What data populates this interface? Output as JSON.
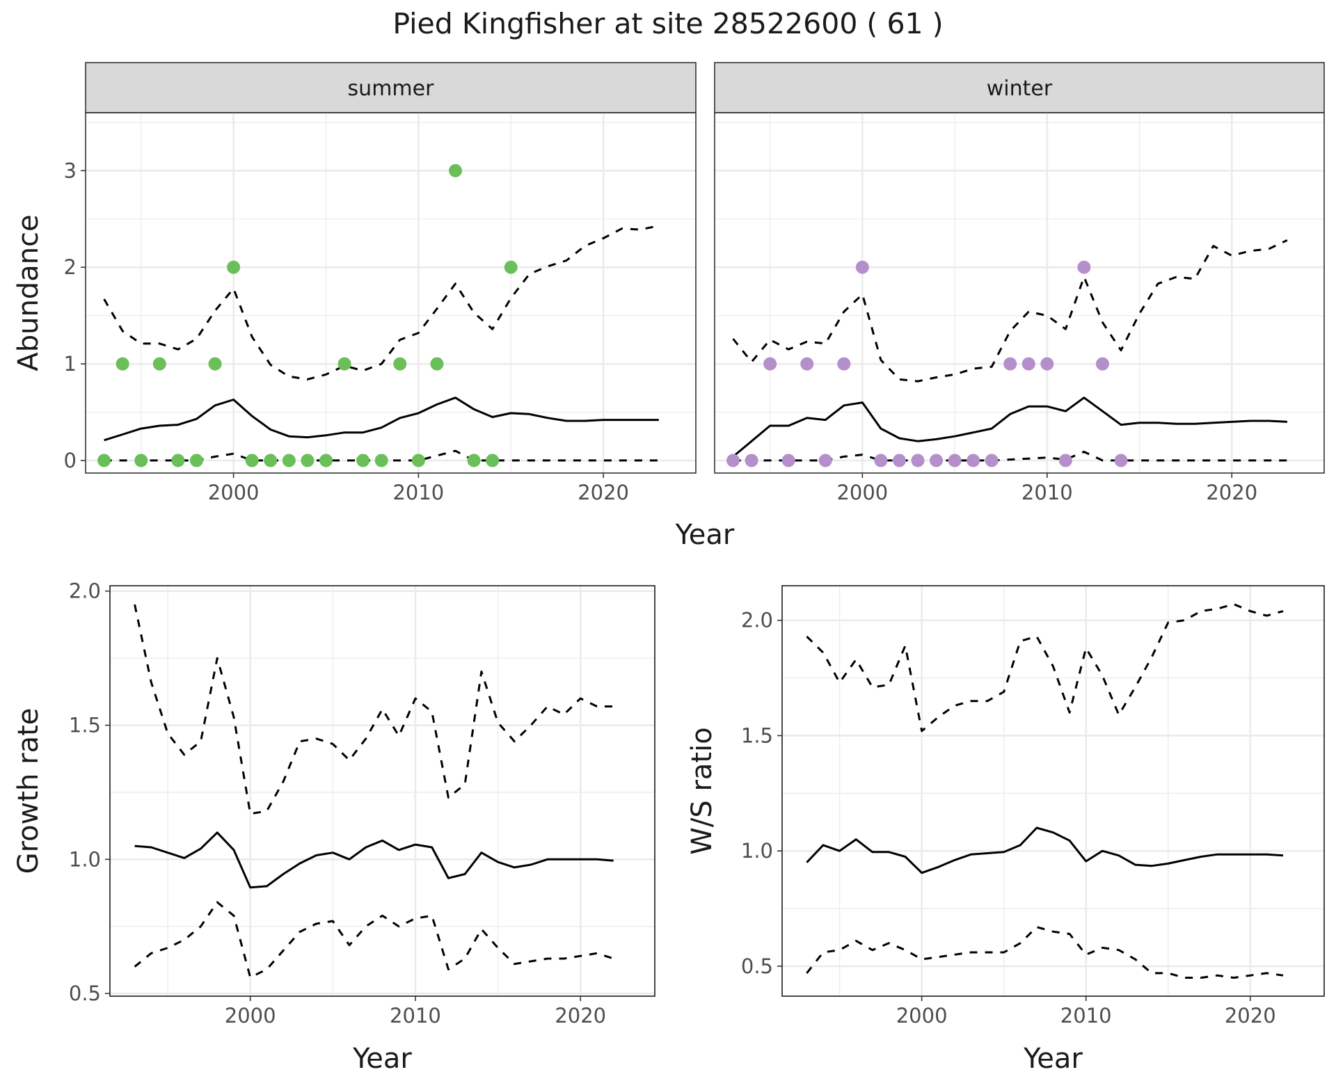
{
  "title": "Pied Kingfisher at site 28522600 ( 61 )",
  "chart_data": [
    {
      "type": "line",
      "facets": [
        "summer",
        "winter"
      ],
      "xlabel": "Year",
      "ylabel": "Abundance",
      "xlim": [
        1992,
        2025
      ],
      "ylim": [
        -0.13,
        3.6
      ],
      "xticks": [
        2000,
        2010,
        2020
      ],
      "yticks": [
        0,
        1,
        2,
        3
      ],
      "grid": true,
      "point_colors": {
        "summer": "#6abf59",
        "winter": "#b58fcb"
      },
      "summer": {
        "observed": {
          "x": [
            1993,
            1994,
            1995,
            1996,
            1997,
            1998,
            1999,
            2000,
            2001,
            2002,
            2003,
            2004,
            2005,
            2006,
            2007,
            2008,
            2009,
            2010,
            2011,
            2012,
            2013,
            2014,
            2015
          ],
          "y": [
            0,
            1,
            0,
            1,
            0,
            0,
            1,
            2,
            0,
            0,
            0,
            0,
            0,
            1,
            0,
            0,
            1,
            0,
            1,
            3,
            0,
            0,
            2
          ]
        },
        "fit": {
          "x": [
            1993,
            1994,
            1995,
            1996,
            1997,
            1998,
            1999,
            2000,
            2001,
            2002,
            2003,
            2004,
            2005,
            2006,
            2007,
            2008,
            2009,
            2010,
            2011,
            2012,
            2013,
            2014,
            2015,
            2016,
            2017,
            2018,
            2019,
            2020,
            2021,
            2022,
            2023
          ],
          "y": [
            0.21,
            0.27,
            0.33,
            0.36,
            0.37,
            0.43,
            0.57,
            0.63,
            0.46,
            0.32,
            0.25,
            0.24,
            0.26,
            0.29,
            0.29,
            0.34,
            0.44,
            0.49,
            0.58,
            0.65,
            0.53,
            0.45,
            0.49,
            0.48,
            0.44,
            0.41,
            0.41,
            0.42,
            0.42,
            0.42,
            0.42
          ]
        },
        "upper": {
          "x": [
            1993,
            1994,
            1995,
            1996,
            1997,
            1998,
            1999,
            2000,
            2001,
            2002,
            2003,
            2004,
            2005,
            2006,
            2007,
            2008,
            2009,
            2010,
            2011,
            2012,
            2013,
            2014,
            2015,
            2016,
            2017,
            2018,
            2019,
            2020,
            2021,
            2022,
            2023
          ],
          "y": [
            1.67,
            1.34,
            1.21,
            1.21,
            1.15,
            1.26,
            1.55,
            1.78,
            1.28,
            0.99,
            0.87,
            0.84,
            0.89,
            0.98,
            0.93,
            1.0,
            1.25,
            1.32,
            1.57,
            1.83,
            1.53,
            1.36,
            1.68,
            1.93,
            2.01,
            2.07,
            2.22,
            2.3,
            2.4,
            2.39,
            2.43
          ]
        },
        "lower": {
          "x": [
            1993,
            1994,
            1995,
            1996,
            1997,
            1998,
            1999,
            2000,
            2001,
            2002,
            2003,
            2004,
            2005,
            2006,
            2007,
            2008,
            2009,
            2010,
            2011,
            2012,
            2013,
            2014,
            2015,
            2016,
            2017,
            2018,
            2019,
            2020,
            2021,
            2022,
            2023
          ],
          "y": [
            0,
            0,
            0,
            0,
            0,
            0,
            0.04,
            0.07,
            0,
            0,
            0,
            0,
            0,
            0,
            0,
            0,
            0,
            0,
            0.05,
            0.1,
            0,
            0,
            0,
            0,
            0,
            0,
            0,
            0,
            0,
            0,
            0
          ]
        }
      },
      "winter": {
        "observed": {
          "x": [
            1993,
            1994,
            1995,
            1996,
            1997,
            1998,
            1999,
            2000,
            2001,
            2002,
            2003,
            2004,
            2005,
            2006,
            2007,
            2008,
            2009,
            2010,
            2011,
            2012,
            2013,
            2014
          ],
          "y": [
            0,
            0,
            1,
            0,
            1,
            0,
            1,
            2,
            0,
            0,
            0,
            0,
            0,
            0,
            0,
            1,
            1,
            1,
            0,
            2,
            1,
            0
          ]
        },
        "fit": {
          "x": [
            1993,
            1994,
            1995,
            1996,
            1997,
            1998,
            1999,
            2000,
            2001,
            2002,
            2003,
            2004,
            2005,
            2006,
            2007,
            2008,
            2009,
            2010,
            2011,
            2012,
            2013,
            2014,
            2015,
            2016,
            2017,
            2018,
            2019,
            2020,
            2021,
            2022,
            2023
          ],
          "y": [
            0.04,
            0.2,
            0.36,
            0.36,
            0.44,
            0.42,
            0.57,
            0.6,
            0.33,
            0.23,
            0.2,
            0.22,
            0.25,
            0.29,
            0.33,
            0.48,
            0.56,
            0.56,
            0.51,
            0.65,
            0.51,
            0.37,
            0.39,
            0.39,
            0.38,
            0.38,
            0.39,
            0.4,
            0.41,
            0.41,
            0.4
          ]
        },
        "upper": {
          "x": [
            1993,
            1994,
            1995,
            1996,
            1997,
            1998,
            1999,
            2000,
            2001,
            2002,
            2003,
            2004,
            2005,
            2006,
            2007,
            2008,
            2009,
            2010,
            2011,
            2012,
            2013,
            2014,
            2015,
            2016,
            2017,
            2018,
            2019,
            2020,
            2021,
            2022,
            2023
          ],
          "y": [
            1.26,
            1.02,
            1.25,
            1.15,
            1.23,
            1.21,
            1.54,
            1.72,
            1.04,
            0.84,
            0.82,
            0.86,
            0.89,
            0.95,
            0.97,
            1.34,
            1.54,
            1.5,
            1.36,
            1.9,
            1.43,
            1.14,
            1.52,
            1.83,
            1.9,
            1.88,
            2.22,
            2.12,
            2.17,
            2.19,
            2.28
          ]
        },
        "lower": {
          "x": [
            1993,
            1994,
            1995,
            1996,
            1997,
            1998,
            1999,
            2000,
            2001,
            2002,
            2003,
            2004,
            2005,
            2006,
            2007,
            2008,
            2009,
            2010,
            2011,
            2012,
            2013,
            2014,
            2015,
            2016,
            2017,
            2018,
            2019,
            2020,
            2021,
            2022,
            2023
          ],
          "y": [
            0,
            0,
            0,
            0,
            0,
            0,
            0.04,
            0.06,
            0,
            0,
            0,
            0,
            0,
            0,
            0,
            0.01,
            0.02,
            0.03,
            0.01,
            0.09,
            0,
            0,
            0,
            0,
            0,
            0,
            0,
            0,
            0,
            0,
            0
          ]
        }
      }
    },
    {
      "type": "line",
      "xlabel": "Year",
      "ylabel": "Growth rate",
      "xlim": [
        1991.5,
        2024.5
      ],
      "ylim": [
        0.49,
        2.02
      ],
      "xticks": [
        2000,
        2010,
        2020
      ],
      "yticks": [
        "0.5",
        "1.0",
        "1.5",
        "2.0"
      ],
      "grid": true,
      "fit": {
        "x": [
          1993,
          1994,
          1995,
          1996,
          1997,
          1998,
          1999,
          2000,
          2001,
          2002,
          2003,
          2004,
          2005,
          2006,
          2007,
          2008,
          2009,
          2010,
          2011,
          2012,
          2013,
          2014,
          2015,
          2016,
          2017,
          2018,
          2019,
          2020,
          2021,
          2022
        ],
        "y": [
          1.05,
          1.045,
          1.025,
          1.005,
          1.04,
          1.1,
          1.035,
          0.895,
          0.9,
          0.945,
          0.985,
          1.015,
          1.025,
          1.0,
          1.045,
          1.07,
          1.035,
          1.055,
          1.045,
          0.93,
          0.945,
          1.025,
          0.99,
          0.97,
          0.98,
          1.0,
          1.0,
          1.0,
          1.0,
          0.995
        ]
      },
      "upper": {
        "x": [
          1993,
          1994,
          1995,
          1996,
          1997,
          1998,
          1999,
          2000,
          2001,
          2002,
          2003,
          2004,
          2005,
          2006,
          2007,
          2008,
          2009,
          2010,
          2011,
          2012,
          2013,
          2014,
          2015,
          2016,
          2017,
          2018,
          2019,
          2020,
          2021,
          2022
        ],
        "y": [
          1.95,
          1.66,
          1.47,
          1.39,
          1.44,
          1.75,
          1.53,
          1.17,
          1.18,
          1.29,
          1.44,
          1.45,
          1.43,
          1.37,
          1.45,
          1.56,
          1.46,
          1.6,
          1.55,
          1.23,
          1.28,
          1.7,
          1.51,
          1.44,
          1.5,
          1.57,
          1.54,
          1.6,
          1.57,
          1.57
        ]
      },
      "lower": {
        "x": [
          1993,
          1994,
          1995,
          1996,
          1997,
          1998,
          1999,
          2000,
          2001,
          2002,
          2003,
          2004,
          2005,
          2006,
          2007,
          2008,
          2009,
          2010,
          2011,
          2012,
          2013,
          2014,
          2015,
          2016,
          2017,
          2018,
          2019,
          2020,
          2021,
          2022
        ],
        "y": [
          0.6,
          0.65,
          0.67,
          0.7,
          0.75,
          0.84,
          0.79,
          0.56,
          0.59,
          0.66,
          0.73,
          0.76,
          0.77,
          0.68,
          0.75,
          0.79,
          0.75,
          0.78,
          0.79,
          0.59,
          0.63,
          0.74,
          0.67,
          0.61,
          0.62,
          0.63,
          0.63,
          0.64,
          0.65,
          0.63
        ]
      }
    },
    {
      "type": "line",
      "xlabel": "Year",
      "ylabel": "W/S ratio",
      "xlim": [
        1991.5,
        2024.5
      ],
      "ylim": [
        0.37,
        2.15
      ],
      "xticks": [
        2000,
        2010,
        2020
      ],
      "yticks": [
        "0.5",
        "1.0",
        "1.5",
        "2.0"
      ],
      "grid": true,
      "fit": {
        "x": [
          1993,
          1994,
          1995,
          1996,
          1997,
          1998,
          1999,
          2000,
          2001,
          2002,
          2003,
          2004,
          2005,
          2006,
          2007,
          2008,
          2009,
          2010,
          2011,
          2012,
          2013,
          2014,
          2015,
          2016,
          2017,
          2018,
          2019,
          2020,
          2021,
          2022
        ],
        "y": [
          0.95,
          1.025,
          1.0,
          1.05,
          0.995,
          0.995,
          0.975,
          0.905,
          0.93,
          0.96,
          0.985,
          0.99,
          0.995,
          1.025,
          1.1,
          1.08,
          1.045,
          0.955,
          1.0,
          0.98,
          0.94,
          0.935,
          0.945,
          0.96,
          0.975,
          0.985,
          0.985,
          0.985,
          0.985,
          0.98
        ]
      },
      "upper": {
        "x": [
          1993,
          1994,
          1995,
          1996,
          1997,
          1998,
          1999,
          2000,
          2001,
          2002,
          2003,
          2004,
          2005,
          2006,
          2007,
          2008,
          2009,
          2010,
          2011,
          2012,
          2013,
          2014,
          2015,
          2016,
          2017,
          2018,
          2019,
          2020,
          2021,
          2022
        ],
        "y": [
          1.93,
          1.86,
          1.73,
          1.83,
          1.71,
          1.72,
          1.89,
          1.52,
          1.58,
          1.63,
          1.65,
          1.65,
          1.69,
          1.91,
          1.93,
          1.8,
          1.6,
          1.88,
          1.76,
          1.59,
          1.71,
          1.84,
          1.99,
          2.0,
          2.04,
          2.05,
          2.07,
          2.04,
          2.02,
          2.04
        ]
      },
      "lower": {
        "x": [
          1993,
          1994,
          1995,
          1996,
          1997,
          1998,
          1999,
          2000,
          2001,
          2002,
          2003,
          2004,
          2005,
          2006,
          2007,
          2008,
          2009,
          2010,
          2011,
          2012,
          2013,
          2014,
          2015,
          2016,
          2017,
          2018,
          2019,
          2020,
          2021,
          2022
        ],
        "y": [
          0.47,
          0.56,
          0.57,
          0.61,
          0.57,
          0.6,
          0.57,
          0.53,
          0.54,
          0.55,
          0.56,
          0.56,
          0.56,
          0.6,
          0.67,
          0.65,
          0.64,
          0.55,
          0.58,
          0.57,
          0.53,
          0.47,
          0.47,
          0.45,
          0.45,
          0.46,
          0.45,
          0.46,
          0.47,
          0.46
        ]
      }
    }
  ]
}
